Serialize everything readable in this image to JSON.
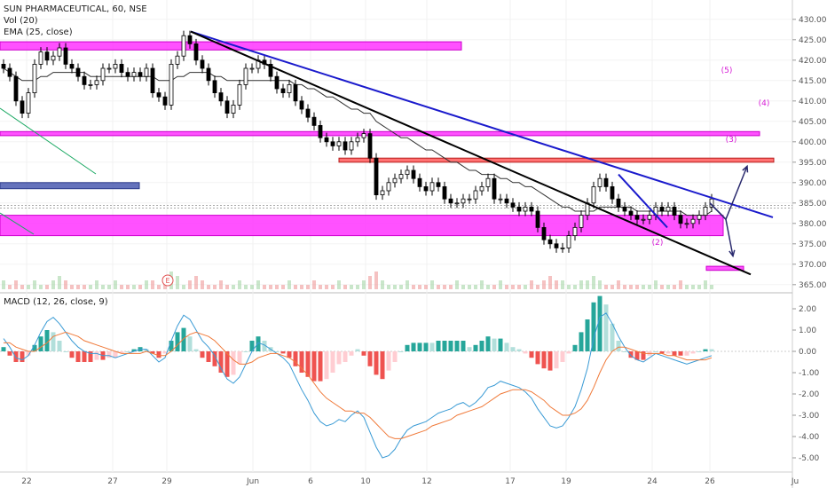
{
  "header": {
    "symbol_line": "SUN PHARMACEUTICAL, 60, NSE",
    "volume_label": "Vol (20)",
    "ema_label": "EMA (25, close)",
    "macd_label": "MACD (12, 26, close, 9)"
  },
  "colors": {
    "up_candle": "#ffffff",
    "down_candle": "#000000",
    "ema": "#333333",
    "resistance_line": "#1a1acc",
    "support_line": "#000000",
    "zone_magenta": "#ff33ff",
    "zone_red": "#ff4d4d",
    "zone_blue": "#4a5bb0",
    "macd_line": "#3a9bd5",
    "signal_line": "#f07a3a",
    "hist_pos_strong": "#26a69a",
    "hist_pos_weak": "#b2dfdb",
    "hist_neg_strong": "#ef5350",
    "hist_neg_weak": "#ffcdd2",
    "projection": "#2a2a6e"
  },
  "chart_data": [
    {
      "type": "candlestick",
      "title": "SUN PHARMACEUTICAL, 60, NSE",
      "ylim": [
        363,
        433
      ],
      "y_ticks": [
        "365.00",
        "370.00",
        "375.00",
        "380.00",
        "385.00",
        "390.00",
        "395.00",
        "400.00",
        "405.00",
        "410.00",
        "415.00",
        "420.00",
        "425.00",
        "430.00"
      ],
      "x_ticks": [
        "22",
        "27",
        "29",
        "Jun",
        "6",
        "10",
        "12",
        "17",
        "19",
        "24",
        "26",
        "Ju"
      ],
      "close_series": [
        418,
        416,
        410,
        407,
        412,
        419,
        422,
        420,
        421,
        423,
        419,
        418,
        416,
        414,
        414,
        415,
        418,
        418,
        419,
        417,
        416,
        417,
        416,
        418,
        412,
        411,
        409,
        419,
        421,
        426,
        424,
        420,
        418,
        415,
        412,
        410,
        407,
        409,
        414,
        418,
        418,
        420,
        419,
        416,
        413,
        412,
        414,
        410,
        408,
        406,
        404,
        401,
        400,
        399,
        400,
        398,
        400,
        401,
        402,
        396,
        387,
        388,
        390,
        391,
        392,
        393,
        391,
        389,
        388,
        390,
        389,
        386,
        385,
        385,
        386,
        386,
        388,
        389,
        391,
        386,
        386,
        385,
        384,
        383,
        384,
        383,
        379,
        376,
        375,
        374,
        374,
        377,
        379,
        382,
        385,
        389,
        391,
        389,
        386,
        384,
        383,
        382,
        381,
        381,
        382,
        384,
        383,
        384,
        382,
        380,
        380,
        381,
        382,
        384,
        386
      ],
      "ema_series": [
        418,
        417,
        416,
        415,
        415,
        415,
        416,
        416,
        417,
        417,
        417,
        417,
        417,
        417,
        416,
        416,
        416,
        416,
        416,
        416,
        416,
        416,
        416,
        416,
        416,
        415,
        415,
        415,
        416,
        416,
        417,
        417,
        417,
        417,
        416,
        416,
        415,
        415,
        415,
        415,
        415,
        415,
        415,
        415,
        415,
        415,
        415,
        414,
        414,
        413,
        413,
        412,
        411,
        411,
        410,
        409,
        408,
        408,
        407,
        407,
        405,
        404,
        403,
        402,
        401,
        401,
        400,
        399,
        398,
        398,
        397,
        396,
        395,
        395,
        394,
        393,
        393,
        392,
        392,
        392,
        391,
        391,
        390,
        390,
        389,
        389,
        388,
        387,
        386,
        385,
        384,
        384,
        383,
        383,
        383,
        383,
        384,
        384,
        384,
        384,
        384,
        384,
        383,
        383,
        383,
        383,
        383,
        383,
        383,
        383,
        382,
        382,
        382,
        382,
        383
      ],
      "volume_series": [
        2,
        1,
        2,
        1,
        1,
        2,
        1,
        1,
        2,
        3,
        2,
        1,
        1,
        1,
        1,
        2,
        1,
        1,
        2,
        1,
        1,
        1,
        1,
        2,
        2,
        1,
        2,
        4,
        3,
        1,
        2,
        3,
        2,
        1,
        1,
        2,
        1,
        1,
        2,
        1,
        1,
        2,
        1,
        1,
        1,
        1,
        2,
        1,
        1,
        1,
        2,
        1,
        1,
        1,
        2,
        1,
        1,
        1,
        2,
        3,
        4,
        2,
        1,
        1,
        1,
        2,
        1,
        1,
        1,
        2,
        1,
        1,
        1,
        2,
        1,
        1,
        1,
        2,
        1,
        1,
        2,
        1,
        1,
        1,
        1,
        2,
        1,
        2,
        3,
        2,
        2,
        1,
        1,
        2,
        2,
        3,
        2,
        1,
        1,
        2,
        1,
        1,
        1,
        1,
        1,
        2,
        1,
        1,
        1,
        2,
        1,
        1,
        1,
        2,
        1
      ],
      "trendlines": [
        {
          "name": "Resistance",
          "from": [
            430,
            427
          ],
          "to": [
            871,
            381.5
          ]
        },
        {
          "name": "Support",
          "from": [
            215,
            427
          ],
          "to": [
            846,
            367.5
          ]
        }
      ],
      "zones": [
        {
          "name": "Zone 424",
          "top": 424.5,
          "bottom": 422.5
        },
        {
          "name": "Zone 402",
          "top": 402.5,
          "bottom": 401.5
        },
        {
          "name": "Zone 395",
          "top": 396,
          "bottom": 395
        },
        {
          "name": "Zone 379",
          "top": 382,
          "bottom": 377
        },
        {
          "name": "Zone 369",
          "top": 369.5,
          "bottom": 368.5
        },
        {
          "name": "Zone 389",
          "top": 390,
          "bottom": 388.5
        }
      ],
      "wave_labels": [
        "(5)",
        "(4)",
        "(3)",
        "(2)"
      ],
      "annotations": [
        "E"
      ]
    },
    {
      "type": "macd",
      "title": "MACD (12, 26, close, 9)",
      "ylim": [
        -5.5,
        2.5
      ],
      "y_ticks": [
        "2.00",
        "1.00",
        "0.00",
        "-1.00",
        "-2.00",
        "-3.00",
        "-4.00",
        "-5.00"
      ],
      "macd_series": [
        0.6,
        0.2,
        -0.3,
        -0.4,
        -0.2,
        0.3,
        0.9,
        1.4,
        1.6,
        1.3,
        0.9,
        0.5,
        0.2,
        0.0,
        -0.1,
        -0.1,
        -0.2,
        -0.2,
        -0.3,
        -0.2,
        -0.1,
        0.0,
        0.1,
        0.1,
        -0.2,
        -0.5,
        -0.3,
        0.5,
        1.2,
        1.7,
        1.5,
        1.0,
        0.5,
        0.2,
        -0.2,
        -0.8,
        -1.3,
        -1.5,
        -1.2,
        -0.6,
        0.0,
        0.4,
        0.3,
        0.1,
        -0.1,
        -0.3,
        -0.6,
        -1.2,
        -1.8,
        -2.3,
        -2.9,
        -3.3,
        -3.5,
        -3.4,
        -3.2,
        -3.3,
        -3.0,
        -2.8,
        -3.1,
        -3.8,
        -4.5,
        -5.0,
        -4.9,
        -4.6,
        -4.1,
        -3.7,
        -3.5,
        -3.4,
        -3.3,
        -3.1,
        -2.9,
        -2.8,
        -2.7,
        -2.5,
        -2.4,
        -2.6,
        -2.4,
        -2.1,
        -1.7,
        -1.6,
        -1.4,
        -1.5,
        -1.6,
        -1.7,
        -1.9,
        -2.2,
        -2.7,
        -3.1,
        -3.5,
        -3.6,
        -3.5,
        -3.1,
        -2.6,
        -1.8,
        -0.8,
        0.6,
        1.6,
        1.8,
        1.3,
        0.7,
        0.2,
        -0.2,
        -0.4,
        -0.5,
        -0.3,
        -0.1,
        -0.2,
        -0.3,
        -0.4,
        -0.5,
        -0.6,
        -0.5,
        -0.4,
        -0.3,
        -0.2
      ],
      "signal_series": [
        0.4,
        0.4,
        0.2,
        0.1,
        0.0,
        0.0,
        0.2,
        0.4,
        0.7,
        0.8,
        0.9,
        0.8,
        0.7,
        0.5,
        0.4,
        0.3,
        0.2,
        0.1,
        0.0,
        -0.1,
        -0.1,
        -0.1,
        -0.1,
        0.0,
        -0.1,
        -0.2,
        -0.2,
        0.0,
        0.3,
        0.6,
        0.8,
        0.9,
        0.8,
        0.7,
        0.5,
        0.2,
        -0.1,
        -0.4,
        -0.6,
        -0.6,
        -0.5,
        -0.3,
        -0.2,
        -0.1,
        -0.1,
        -0.2,
        -0.3,
        -0.5,
        -0.8,
        -1.1,
        -1.5,
        -1.9,
        -2.2,
        -2.4,
        -2.6,
        -2.8,
        -2.8,
        -2.9,
        -2.9,
        -3.1,
        -3.4,
        -3.7,
        -4.0,
        -4.1,
        -4.1,
        -4.0,
        -3.9,
        -3.8,
        -3.7,
        -3.5,
        -3.4,
        -3.3,
        -3.2,
        -3.0,
        -2.9,
        -2.8,
        -2.7,
        -2.6,
        -2.4,
        -2.2,
        -2.0,
        -1.9,
        -1.8,
        -1.8,
        -1.8,
        -1.9,
        -2.1,
        -2.3,
        -2.6,
        -2.8,
        -3.0,
        -3.0,
        -2.9,
        -2.7,
        -2.3,
        -1.7,
        -1.0,
        -0.4,
        0.0,
        0.2,
        0.2,
        0.1,
        0.0,
        -0.1,
        -0.1,
        -0.1,
        -0.1,
        -0.2,
        -0.2,
        -0.3,
        -0.4,
        -0.4,
        -0.4,
        -0.4,
        -0.3
      ]
    }
  ]
}
